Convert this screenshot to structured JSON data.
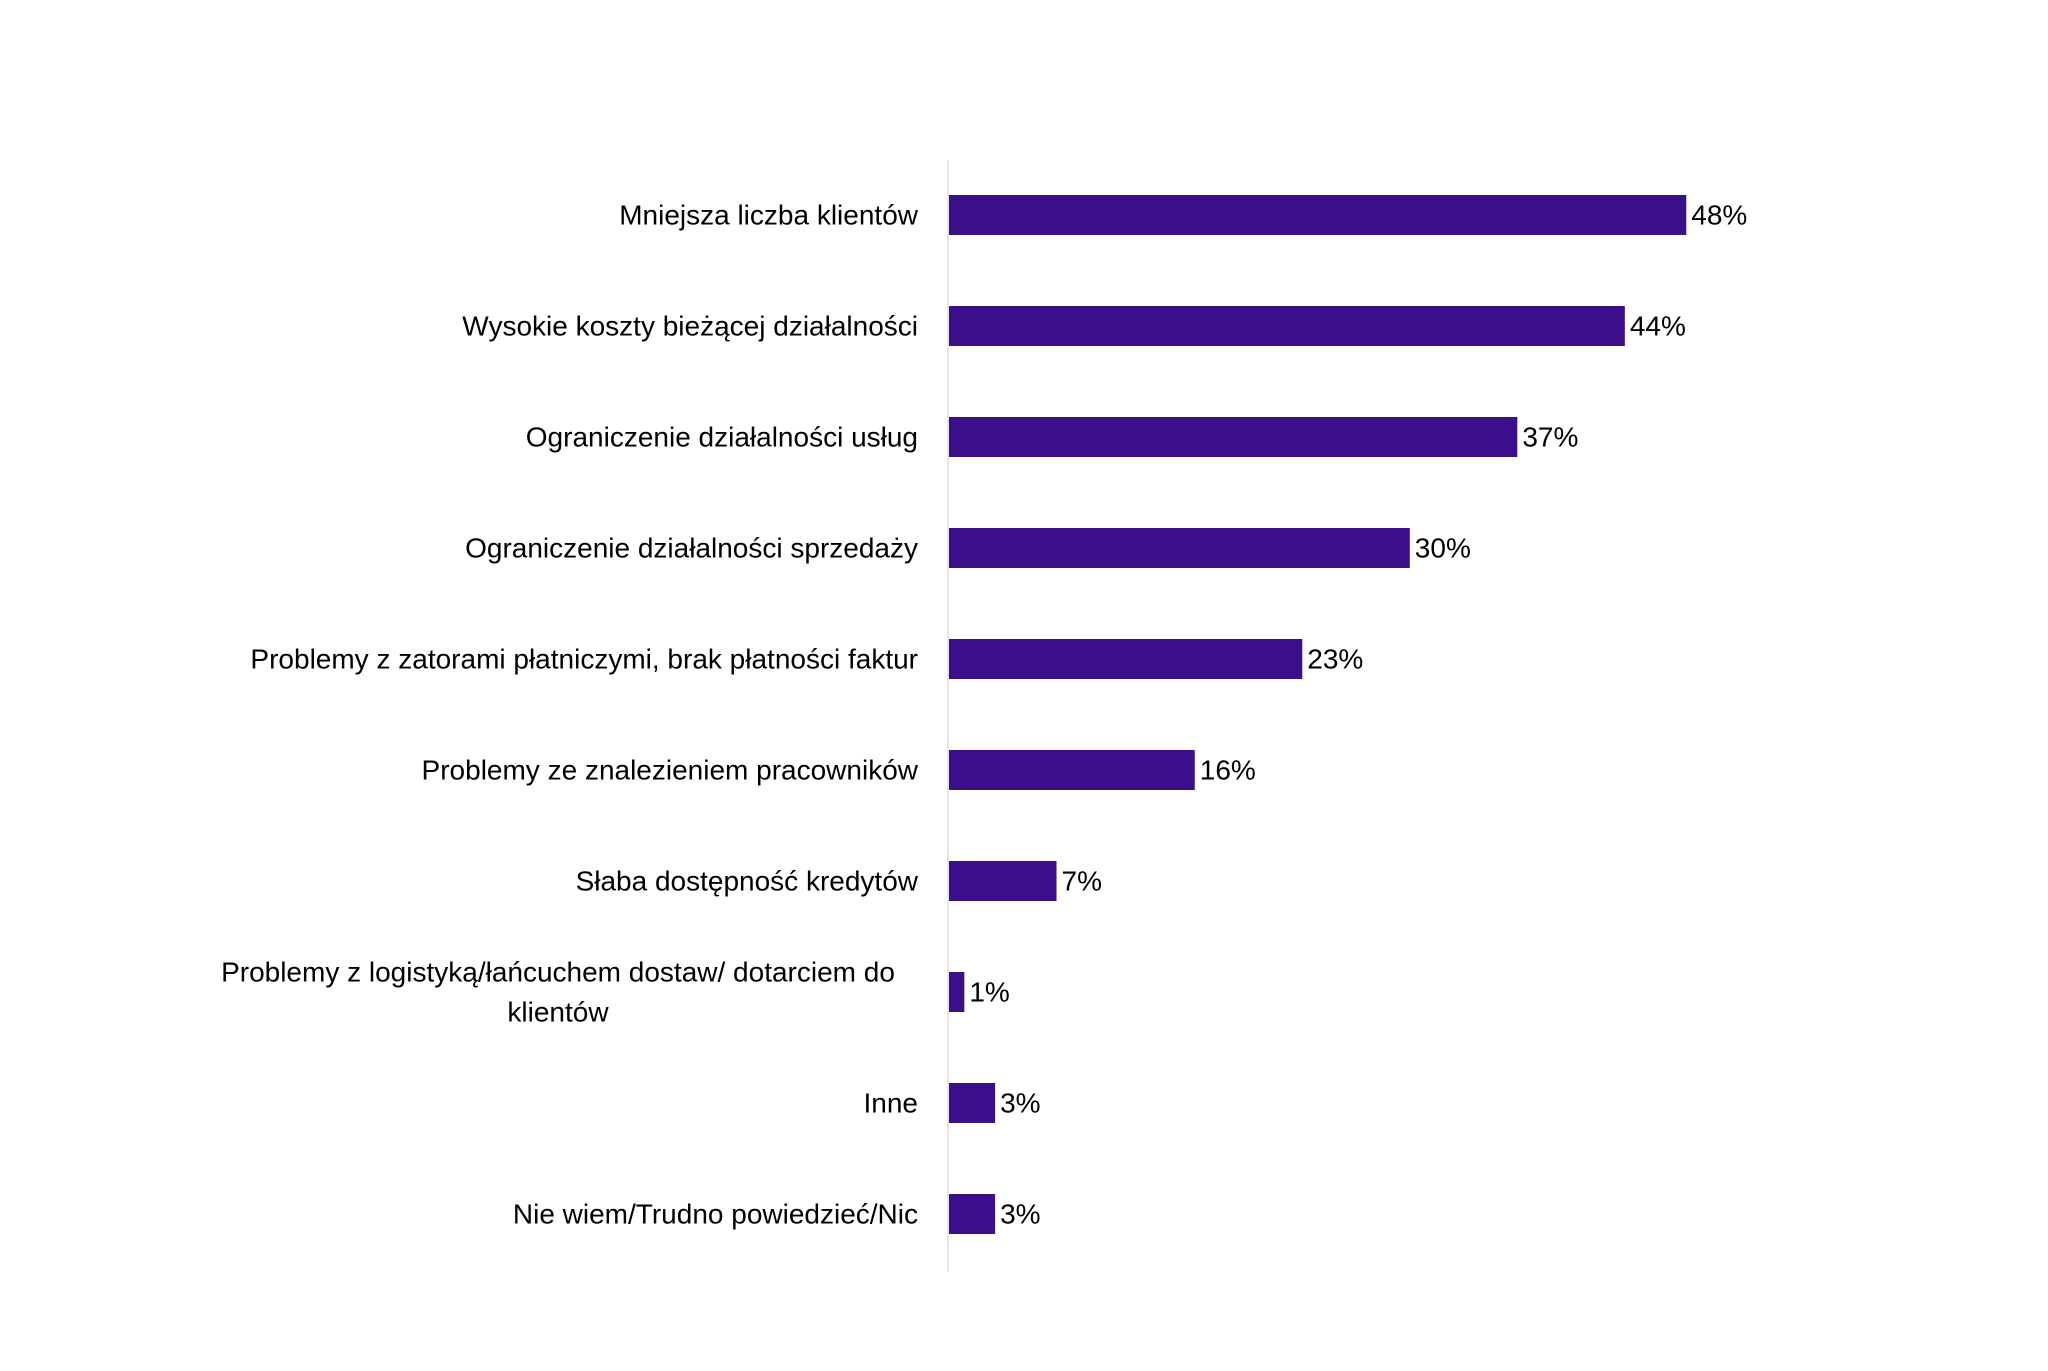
{
  "chart_data": {
    "type": "bar",
    "orientation": "horizontal",
    "title": "",
    "xlabel": "",
    "ylabel": "",
    "xlim": [
      0,
      48
    ],
    "grid": false,
    "legend": "none",
    "bar_color": "#3c0f8a",
    "axis_color": "#e6e6e6",
    "categories": [
      "Mniejsza liczba klientów",
      "Wysokie koszty bieżącej działalności",
      "Ograniczenie działalności usług",
      "Ograniczenie działalności sprzedaży",
      "Problemy z zatorami płatniczymi, brak płatności faktur",
      "Problemy ze znalezieniem pracowników",
      "Słaba dostępność kredytów",
      "Problemy z logistyką/łańcuchem dostaw/ dotarciem do klientów",
      "Inne",
      "Nie wiem/Trudno powiedzieć/Nic"
    ],
    "category_lines": [
      [
        "Mniejsza liczba klientów"
      ],
      [
        "Wysokie koszty bieżącej działalności"
      ],
      [
        "Ograniczenie działalności usług"
      ],
      [
        "Ograniczenie działalności sprzedaży"
      ],
      [
        "Problemy z zatorami płatniczymi, brak płatności faktur"
      ],
      [
        "Problemy ze znalezieniem pracowników"
      ],
      [
        "Słaba dostępność kredytów"
      ],
      [
        "Problemy z logistyką/łańcuchem dostaw/ dotarciem do",
        "klientów"
      ],
      [
        "Inne"
      ],
      [
        "Nie wiem/Trudno powiedzieć/Nic"
      ]
    ],
    "values": [
      48,
      44,
      37,
      30,
      23,
      16,
      7,
      1,
      3,
      3
    ],
    "value_labels": [
      "48%",
      "44%",
      "37%",
      "30%",
      "23%",
      "16%",
      "7%",
      "1%",
      "3%",
      "3%"
    ]
  }
}
